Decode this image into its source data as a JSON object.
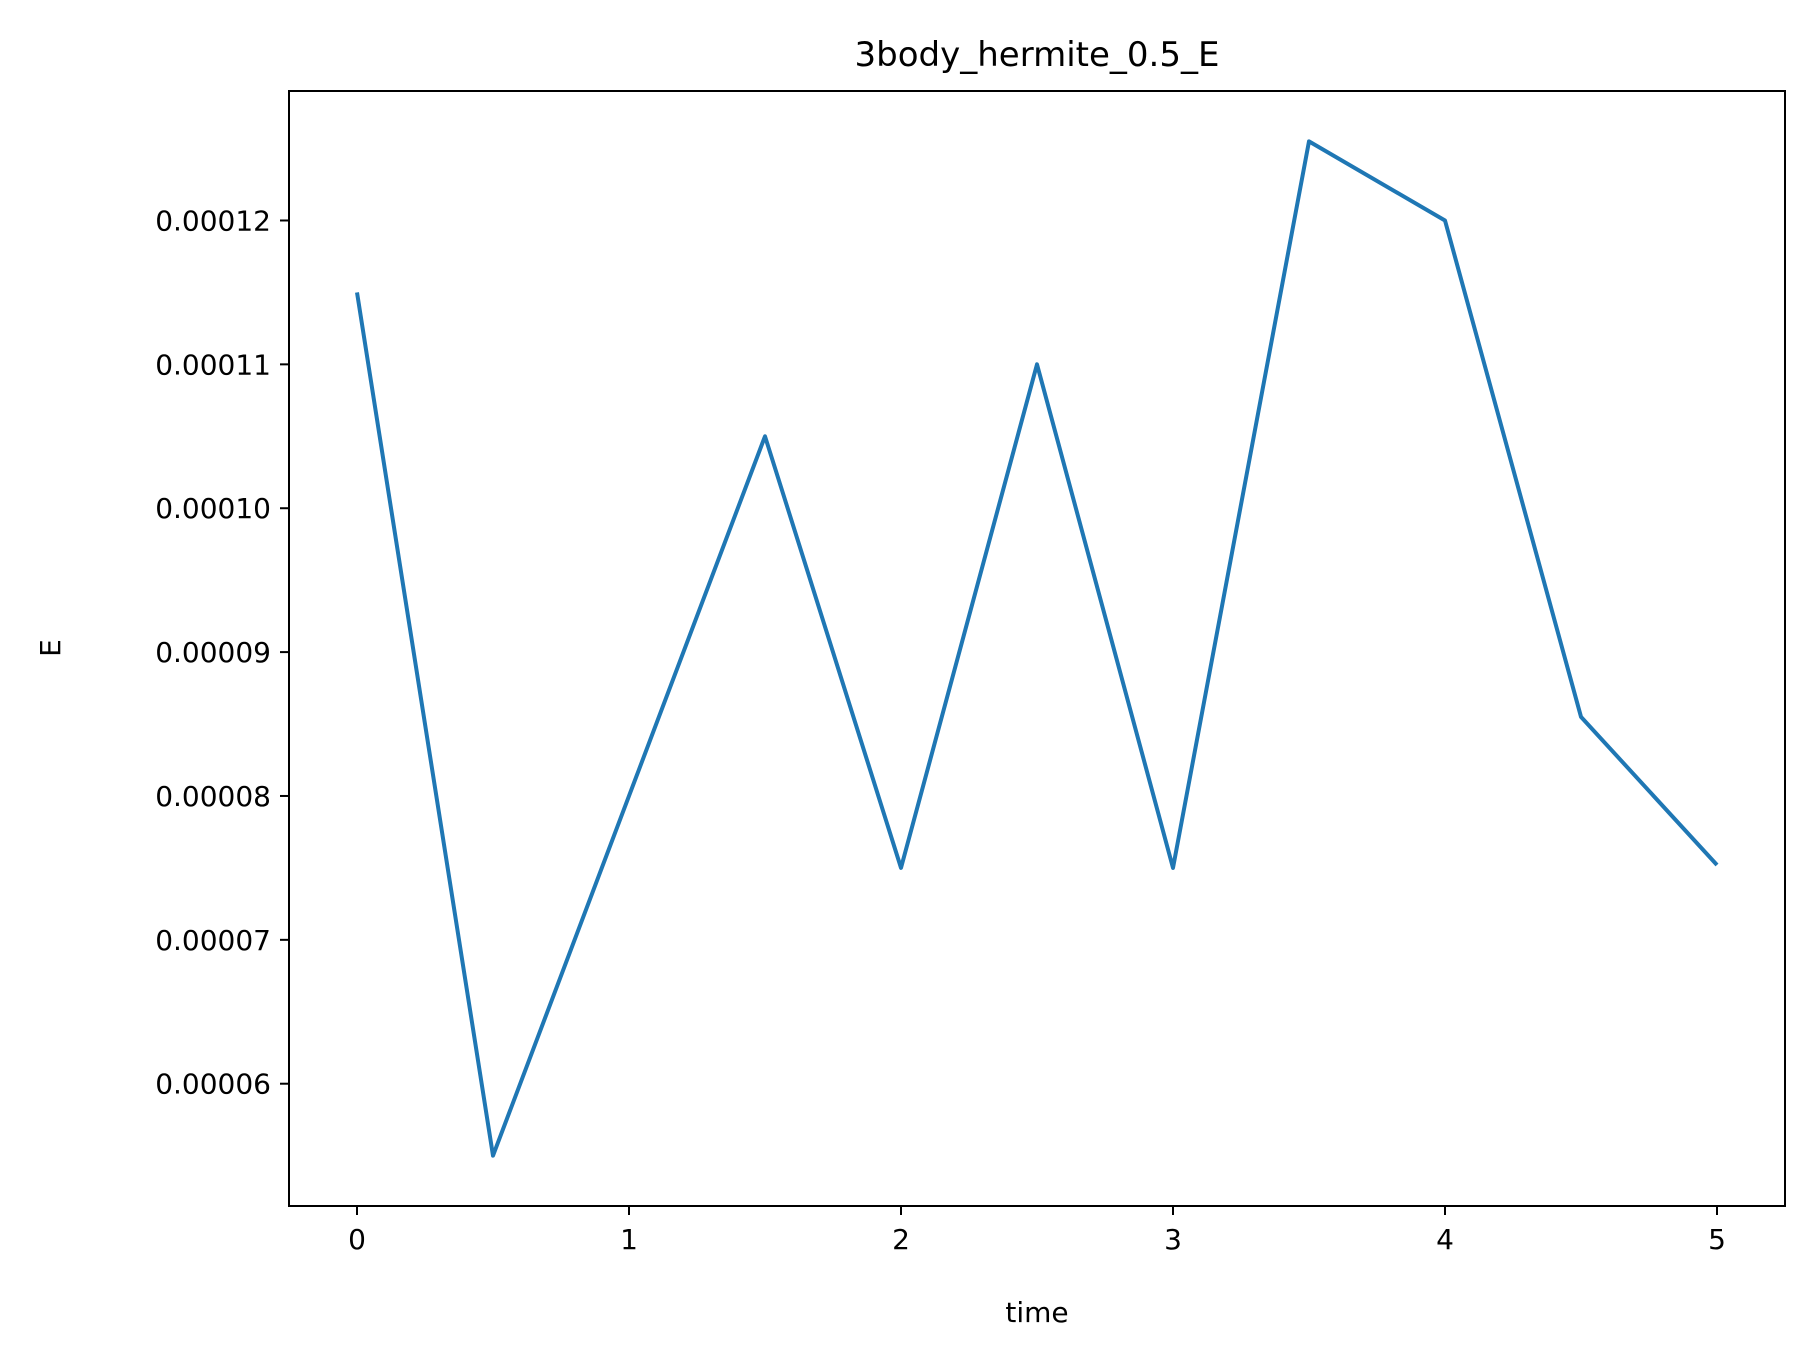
{
  "chart_data": {
    "type": "line",
    "title": "3body_hermite_0.5_E",
    "xlabel": "time",
    "ylabel": "E",
    "xlim": [
      -0.25,
      5.25
    ],
    "ylim": [
      5.15e-05,
      0.000129
    ],
    "xticks": [
      {
        "value": 0,
        "label": "0"
      },
      {
        "value": 1,
        "label": "1"
      },
      {
        "value": 2,
        "label": "2"
      },
      {
        "value": 3,
        "label": "3"
      },
      {
        "value": 4,
        "label": "4"
      },
      {
        "value": 5,
        "label": "5"
      }
    ],
    "yticks": [
      {
        "value": 6e-05,
        "label": "0.00006"
      },
      {
        "value": 7e-05,
        "label": "0.00007"
      },
      {
        "value": 8e-05,
        "label": "0.00008"
      },
      {
        "value": 9e-05,
        "label": "0.00009"
      },
      {
        "value": 0.0001,
        "label": "0.00010"
      },
      {
        "value": 0.00011,
        "label": "0.00011"
      },
      {
        "value": 0.00012,
        "label": "0.00012"
      }
    ],
    "grid": false,
    "series": [
      {
        "color": "#1f77b4",
        "x": [
          0,
          0.5,
          1.0,
          1.5,
          2.0,
          2.5,
          3.0,
          3.5,
          4.0,
          4.5,
          5.0
        ],
        "y": [
          0.000115,
          5.5e-05,
          8e-05,
          0.000105,
          7.5e-05,
          0.00011,
          7.5e-05,
          0.0001255,
          0.00012,
          8.55e-05,
          7.52e-05
        ]
      }
    ]
  }
}
